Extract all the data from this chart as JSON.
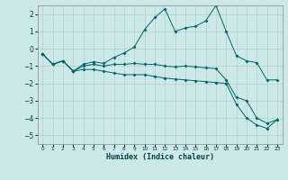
{
  "xlabel": "Humidex (Indice chaleur)",
  "bg_color": "#cce8e8",
  "line_color": "#006666",
  "xlim": [
    -0.5,
    23.5
  ],
  "ylim": [
    -5.5,
    2.5
  ],
  "yticks": [
    -5,
    -4,
    -3,
    -2,
    -1,
    0,
    1,
    2
  ],
  "xticks": [
    0,
    1,
    2,
    3,
    4,
    5,
    6,
    7,
    8,
    9,
    10,
    11,
    12,
    13,
    14,
    15,
    16,
    17,
    18,
    19,
    20,
    21,
    22,
    23
  ],
  "line1_x": [
    0,
    1,
    2,
    3,
    4,
    5,
    6,
    7,
    8,
    9,
    10,
    11,
    12,
    13,
    14,
    15,
    16,
    17,
    18,
    19,
    20,
    21,
    22,
    23
  ],
  "line1_y": [
    -0.3,
    -0.9,
    -0.7,
    -1.3,
    -0.9,
    -0.75,
    -0.85,
    -0.5,
    -0.25,
    0.1,
    1.1,
    1.8,
    2.3,
    1.0,
    1.2,
    1.3,
    1.6,
    2.5,
    1.0,
    -0.4,
    -0.7,
    -0.8,
    -1.8,
    -1.8
  ],
  "line2_x": [
    0,
    1,
    2,
    3,
    4,
    5,
    6,
    7,
    8,
    9,
    10,
    11,
    12,
    13,
    14,
    15,
    16,
    17,
    18,
    19,
    20,
    21,
    22,
    23
  ],
  "line2_y": [
    -0.3,
    -0.9,
    -0.7,
    -1.3,
    -1.0,
    -0.9,
    -1.0,
    -0.9,
    -0.9,
    -0.85,
    -0.9,
    -0.9,
    -1.0,
    -1.05,
    -1.0,
    -1.05,
    -1.1,
    -1.15,
    -1.8,
    -2.8,
    -3.0,
    -4.0,
    -4.3,
    -4.1
  ],
  "line3_x": [
    0,
    1,
    2,
    3,
    4,
    5,
    6,
    7,
    8,
    9,
    10,
    11,
    12,
    13,
    14,
    15,
    16,
    17,
    18,
    19,
    20,
    21,
    22,
    23
  ],
  "line3_y": [
    -0.3,
    -0.9,
    -0.7,
    -1.3,
    -1.2,
    -1.2,
    -1.3,
    -1.4,
    -1.5,
    -1.5,
    -1.5,
    -1.6,
    -1.7,
    -1.75,
    -1.8,
    -1.85,
    -1.9,
    -1.95,
    -2.0,
    -3.2,
    -4.0,
    -4.4,
    -4.6,
    -4.1
  ],
  "markersize": 2.0
}
